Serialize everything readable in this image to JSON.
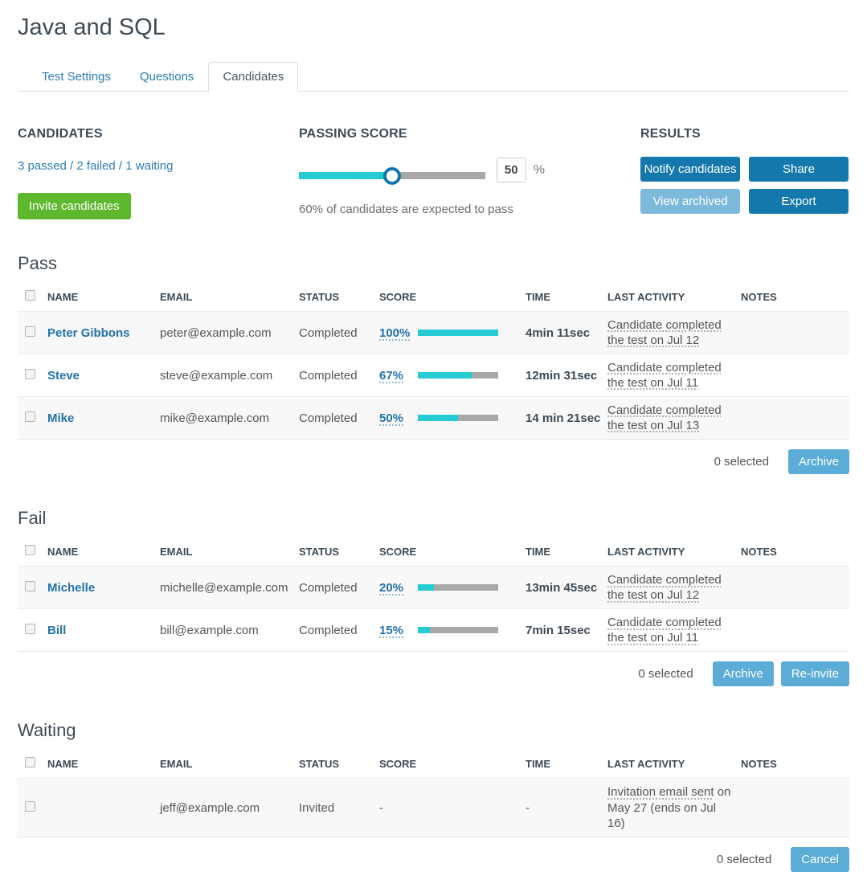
{
  "page": {
    "title": "Java and SQL"
  },
  "tabs": [
    {
      "label": "Test Settings",
      "active": false
    },
    {
      "label": "Questions",
      "active": false
    },
    {
      "label": "Candidates",
      "active": true
    }
  ],
  "candidates_panel": {
    "heading": "CANDIDATES",
    "summary": "3 passed / 2 failed / 1 waiting",
    "invite_button": "Invite candidates"
  },
  "passing_panel": {
    "heading": "PASSING SCORE",
    "percent": 50,
    "value": "50",
    "unit": "%",
    "note": "60% of candidates are expected to pass"
  },
  "results_panel": {
    "heading": "RESULTS",
    "notify_button": "Notify candidates",
    "share_button": "Share",
    "view_archived_button": "View archived",
    "export_button": "Export"
  },
  "columns": {
    "name": "NAME",
    "email": "EMAIL",
    "status": "STATUS",
    "score": "SCORE",
    "time": "TIME",
    "last_activity": "LAST ACTIVITY",
    "notes": "NOTES"
  },
  "sections": [
    {
      "heading": "Pass",
      "rows": [
        {
          "name": "Peter Gibbons",
          "email": "peter@example.com",
          "status": "Completed",
          "score_label": "100%",
          "score_percent": 100,
          "time": "4min 11sec",
          "activity_link": "Candidate completed the test on Jul 12",
          "activity_rest": "",
          "notes": ""
        },
        {
          "name": "Steve",
          "email": "steve@example.com",
          "status": "Completed",
          "score_label": "67%",
          "score_percent": 67,
          "time": "12min 31sec",
          "activity_link": "Candidate completed the test on Jul 11",
          "activity_rest": "",
          "notes": ""
        },
        {
          "name": "Mike",
          "email": "mike@example.com",
          "status": "Completed",
          "score_label": "50%",
          "score_percent": 50,
          "time": "14 min 21sec",
          "activity_link": "Candidate completed the test on Jul 13",
          "activity_rest": "",
          "notes": ""
        }
      ],
      "footer": {
        "selected": "0 selected",
        "buttons": [
          "Archive"
        ]
      }
    },
    {
      "heading": "Fail",
      "rows": [
        {
          "name": "Michelle",
          "email": "michelle@example.com",
          "status": "Completed",
          "score_label": "20%",
          "score_percent": 20,
          "time": "13min 45sec",
          "activity_link": "Candidate completed the test on Jul 12",
          "activity_rest": "",
          "notes": ""
        },
        {
          "name": "Bill",
          "email": "bill@example.com",
          "status": "Completed",
          "score_label": "15%",
          "score_percent": 15,
          "time": "7min 15sec",
          "activity_link": "Candidate completed the test on Jul 11",
          "activity_rest": "",
          "notes": ""
        }
      ],
      "footer": {
        "selected": "0 selected",
        "buttons": [
          "Archive",
          "Re-invite"
        ]
      }
    },
    {
      "heading": "Waiting",
      "rows": [
        {
          "name": "",
          "email": "jeff@example.com",
          "status": "Invited",
          "score_label": "-",
          "time": "-",
          "activity_link": "Invitation email sent",
          "activity_rest": " on May 27 (ends on Jul 16)",
          "notes": ""
        }
      ],
      "footer": {
        "selected": "0 selected",
        "buttons": [
          "Cancel"
        ]
      }
    }
  ],
  "colors": {
    "accent_cyan": "#26cbd3",
    "primary_blue": "#1578ad",
    "mid_blue": "#5badd7",
    "pale_blue": "#7db9da",
    "green": "#5eb82e",
    "link_blue": "#2b7db5"
  }
}
